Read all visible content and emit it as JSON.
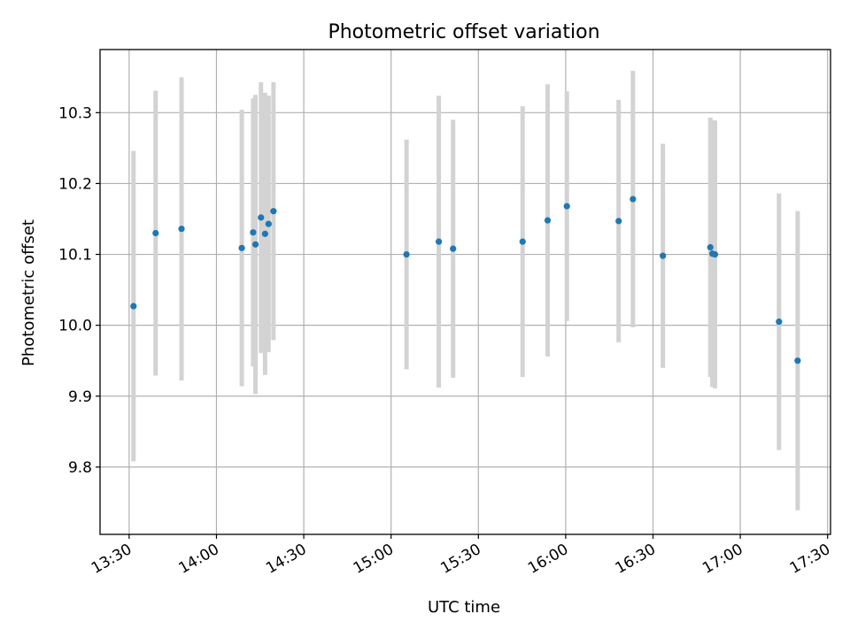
{
  "chart_data": {
    "type": "scatter",
    "title": "Photometric offset variation",
    "xlabel": "UTC time",
    "ylabel": "Photometric offset",
    "grid": true,
    "xlim": [
      "13:20",
      "17:31"
    ],
    "ylim": [
      9.705,
      10.389
    ],
    "x_ticks": [
      "13:30",
      "14:00",
      "14:30",
      "15:00",
      "15:30",
      "16:00",
      "16:30",
      "17:00",
      "17:30"
    ],
    "y_ticks": [
      9.8,
      9.9,
      10.0,
      10.1,
      10.2,
      10.3
    ],
    "y_tick_labels": [
      "9.8",
      "9.9",
      "10.0",
      "10.1",
      "10.2",
      "10.3"
    ],
    "colors": {
      "points": "#1f77b4",
      "errorbars": "#d3d3d3",
      "grid": "#b0b0b0",
      "axes": "#000000"
    },
    "points": [
      {
        "time": "13:31:30",
        "value": 10.027,
        "err": 0.219
      },
      {
        "time": "13:39:06",
        "value": 10.13,
        "err": 0.201
      },
      {
        "time": "13:48:00",
        "value": 10.136,
        "err": 0.214
      },
      {
        "time": "14:08:42",
        "value": 10.109,
        "err": 0.195
      },
      {
        "time": "14:12:36",
        "value": 10.131,
        "err": 0.189
      },
      {
        "time": "14:13:24",
        "value": 10.114,
        "err": 0.211
      },
      {
        "time": "14:15:18",
        "value": 10.152,
        "err": 0.191
      },
      {
        "time": "14:16:42",
        "value": 10.129,
        "err": 0.199
      },
      {
        "time": "14:17:54",
        "value": 10.143,
        "err": 0.181
      },
      {
        "time": "14:19:36",
        "value": 10.161,
        "err": 0.182
      },
      {
        "time": "15:05:18",
        "value": 10.1,
        "err": 0.162
      },
      {
        "time": "15:16:24",
        "value": 10.118,
        "err": 0.206
      },
      {
        "time": "15:21:18",
        "value": 10.108,
        "err": 0.182
      },
      {
        "time": "15:45:12",
        "value": 10.118,
        "err": 0.191
      },
      {
        "time": "15:53:48",
        "value": 10.148,
        "err": 0.192
      },
      {
        "time": "16:00:24",
        "value": 10.168,
        "err": 0.162
      },
      {
        "time": "16:18:12",
        "value": 10.147,
        "err": 0.171
      },
      {
        "time": "16:23:06",
        "value": 10.178,
        "err": 0.181
      },
      {
        "time": "16:33:24",
        "value": 10.098,
        "err": 0.158
      },
      {
        "time": "16:49:42",
        "value": 10.11,
        "err": 0.183
      },
      {
        "time": "16:50:24",
        "value": 10.101,
        "err": 0.188
      },
      {
        "time": "16:51:18",
        "value": 10.1,
        "err": 0.189
      },
      {
        "time": "17:13:18",
        "value": 10.005,
        "err": 0.181
      },
      {
        "time": "17:19:42",
        "value": 9.95,
        "err": 0.211
      }
    ]
  }
}
